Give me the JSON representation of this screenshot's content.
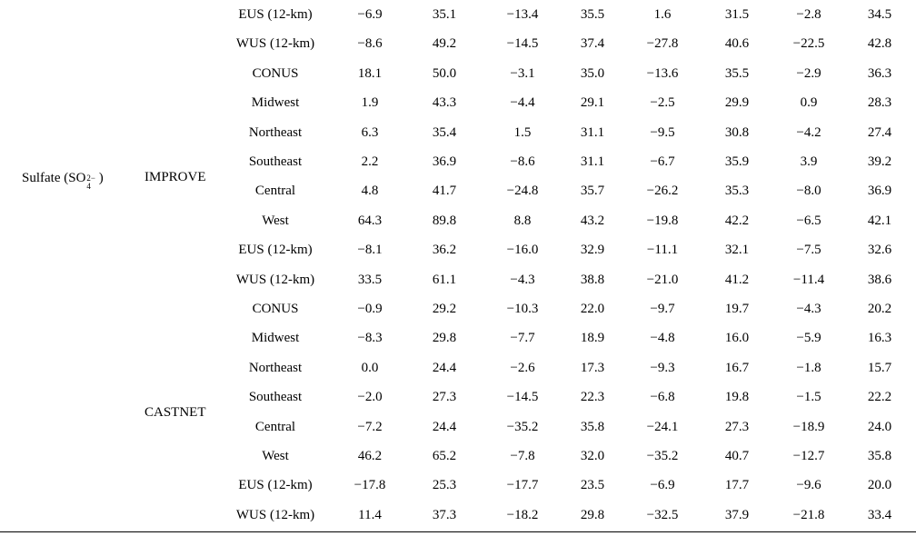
{
  "species": {
    "label": "Sulfate (",
    "formula": "SO",
    "charge": "2−",
    "subscript": "4",
    "close": ")"
  },
  "networks": {
    "improve": "IMPROVE",
    "castnet": "CASTNET"
  },
  "rows": [
    {
      "region": "EUS (12-km)",
      "values": [
        "−6.9",
        "35.1",
        "−13.4",
        "35.5",
        "1.6",
        "31.5",
        "−2.8",
        "34.5"
      ]
    },
    {
      "region": "WUS (12-km)",
      "values": [
        "−8.6",
        "49.2",
        "−14.5",
        "37.4",
        "−27.8",
        "40.6",
        "−22.5",
        "42.8"
      ]
    },
    {
      "region": "CONUS",
      "values": [
        "18.1",
        "50.0",
        "−3.1",
        "35.0",
        "−13.6",
        "35.5",
        "−2.9",
        "36.3"
      ]
    },
    {
      "region": "Midwest",
      "values": [
        "1.9",
        "43.3",
        "−4.4",
        "29.1",
        "−2.5",
        "29.9",
        "0.9",
        "28.3"
      ]
    },
    {
      "region": "Northeast",
      "values": [
        "6.3",
        "35.4",
        "1.5",
        "31.1",
        "−9.5",
        "30.8",
        "−4.2",
        "27.4"
      ]
    },
    {
      "region": "Southeast",
      "values": [
        "2.2",
        "36.9",
        "−8.6",
        "31.1",
        "−6.7",
        "35.9",
        "3.9",
        "39.2"
      ]
    },
    {
      "region": "Central",
      "values": [
        "4.8",
        "41.7",
        "−24.8",
        "35.7",
        "−26.2",
        "35.3",
        "−8.0",
        "36.9"
      ]
    },
    {
      "region": "West",
      "values": [
        "64.3",
        "89.8",
        "8.8",
        "43.2",
        "−19.8",
        "42.2",
        "−6.5",
        "42.1"
      ]
    },
    {
      "region": "EUS (12-km)",
      "values": [
        "−8.1",
        "36.2",
        "−16.0",
        "32.9",
        "−11.1",
        "32.1",
        "−7.5",
        "32.6"
      ]
    },
    {
      "region": "WUS (12-km)",
      "values": [
        "33.5",
        "61.1",
        "−4.3",
        "38.8",
        "−21.0",
        "41.2",
        "−11.4",
        "38.6"
      ]
    },
    {
      "region": "CONUS",
      "values": [
        "−0.9",
        "29.2",
        "−10.3",
        "22.0",
        "−9.7",
        "19.7",
        "−4.3",
        "20.2"
      ]
    },
    {
      "region": "Midwest",
      "values": [
        "−8.3",
        "29.8",
        "−7.7",
        "18.9",
        "−4.8",
        "16.0",
        "−5.9",
        "16.3"
      ]
    },
    {
      "region": "Northeast",
      "values": [
        "0.0",
        "24.4",
        "−2.6",
        "17.3",
        "−9.3",
        "16.7",
        "−1.8",
        "15.7"
      ]
    },
    {
      "region": "Southeast",
      "values": [
        "−2.0",
        "27.3",
        "−14.5",
        "22.3",
        "−6.8",
        "19.8",
        "−1.5",
        "22.2"
      ]
    },
    {
      "region": "Central",
      "values": [
        "−7.2",
        "24.4",
        "−35.2",
        "35.8",
        "−24.1",
        "27.3",
        "−18.9",
        "24.0"
      ]
    },
    {
      "region": "West",
      "values": [
        "46.2",
        "65.2",
        "−7.8",
        "32.0",
        "−35.2",
        "40.7",
        "−12.7",
        "35.8"
      ]
    },
    {
      "region": "EUS (12-km)",
      "values": [
        "−17.8",
        "25.3",
        "−17.7",
        "23.5",
        "−6.9",
        "17.7",
        "−9.6",
        "20.0"
      ]
    },
    {
      "region": "WUS (12-km)",
      "values": [
        "11.4",
        "37.3",
        "−18.2",
        "29.8",
        "−32.5",
        "37.9",
        "−21.8",
        "33.4"
      ]
    }
  ]
}
